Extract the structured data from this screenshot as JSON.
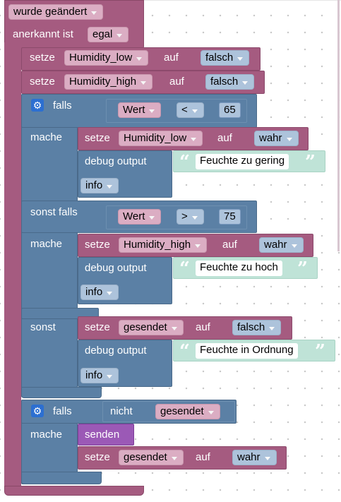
{
  "event": {
    "changed_label": "wurde geändert",
    "ack_label": "anerkannt ist",
    "ack_value": "egal"
  },
  "set1": {
    "prefix": "setze",
    "var": "Humidity_low",
    "mid": "auf",
    "value": "falsch"
  },
  "set2": {
    "prefix": "setze",
    "var": "Humidity_high",
    "mid": "auf",
    "value": "falsch"
  },
  "if1": {
    "falls": "falls",
    "compare1": {
      "left": "Wert",
      "op": "<",
      "num": "65"
    },
    "mache1": "mache",
    "set_low": {
      "prefix": "setze",
      "var": "Humidity_low",
      "mid": "auf",
      "value": "wahr"
    },
    "debug1": {
      "label": "debug output",
      "text": "Feuchte zu gering",
      "level": "info"
    },
    "sonst_falls": "sonst falls",
    "compare2": {
      "left": "Wert",
      "op": ">",
      "num": "75"
    },
    "mache2": "mache",
    "set_high": {
      "prefix": "setze",
      "var": "Humidity_high",
      "mid": "auf",
      "value": "wahr"
    },
    "debug2": {
      "label": "debug output",
      "text": "Feuchte zu hoch",
      "level": "info"
    },
    "sonst": "sonst",
    "set_sent": {
      "prefix": "setze",
      "var": "gesendet",
      "mid": "auf",
      "value": "falsch"
    },
    "debug3": {
      "label": "debug output",
      "text": "Feuchte in Ordnung",
      "level": "info"
    }
  },
  "if2": {
    "falls": "falls",
    "not_label": "nicht",
    "not_var": "gesendet",
    "mache": "mache",
    "send_label": "senden",
    "set_sent": {
      "prefix": "setze",
      "var": "gesendet",
      "mid": "auf",
      "value": "wahr"
    }
  },
  "colors": {
    "event": "#a55b80",
    "variables": "#a55b80",
    "logic": "#5b80a5",
    "text": "#bfe3d7",
    "send": "#9b59b6"
  },
  "icons": {
    "gear": "gear-icon",
    "quote_open": "“",
    "quote_close": "”"
  }
}
